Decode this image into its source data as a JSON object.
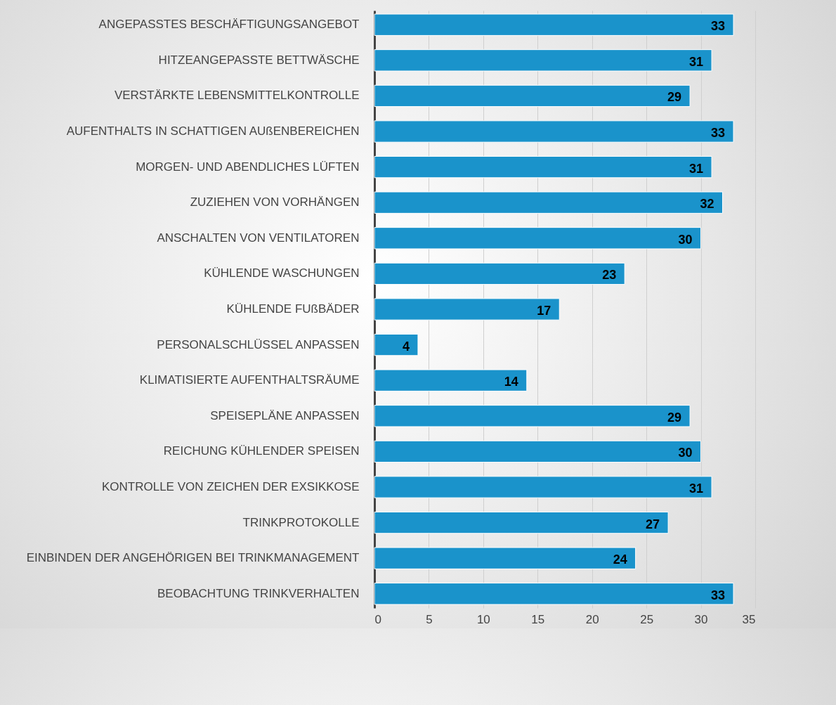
{
  "chart_data": {
    "type": "bar",
    "orientation": "horizontal",
    "categories": [
      "ANGEPASSTES BESCHÄFTIGUNGSANGEBOT",
      "HITZEANGEPASSTE BETTWÄSCHE",
      "VERSTÄRKTE LEBENSMITTELKONTROLLE",
      "AUFENTHALTS IN SCHATTIGEN AUßENBEREICHEN",
      "MORGEN- UND ABENDLICHES LÜFTEN",
      "ZUZIEHEN VON VORHÄNGEN",
      "ANSCHALTEN VON VENTILATOREN",
      "KÜHLENDE WASCHUNGEN",
      "KÜHLENDE FUßBÄDER",
      "PERSONALSCHLÜSSEL ANPASSEN",
      "KLIMATISIERTE AUFENTHALTSRÄUME",
      "SPEISEPLÄNE ANPASSEN",
      "REICHUNG KÜHLENDER SPEISEN",
      "KONTROLLE VON ZEICHEN DER EXSIKKOSE",
      "TRINKPROTOKOLLE",
      "EINBINDEN DER ANGEHÖRIGEN BEI TRINKMANAGEMENT",
      "BEOBACHTUNG TRINKVERHALTEN"
    ],
    "values": [
      33,
      31,
      29,
      33,
      31,
      32,
      30,
      23,
      17,
      4,
      14,
      29,
      30,
      31,
      27,
      24,
      33
    ],
    "color": "#1a93cb",
    "xlim": [
      0,
      35
    ],
    "xticks": [
      0,
      5,
      10,
      15,
      20,
      25,
      30,
      35
    ],
    "grid": "x",
    "data_labels": true
  }
}
